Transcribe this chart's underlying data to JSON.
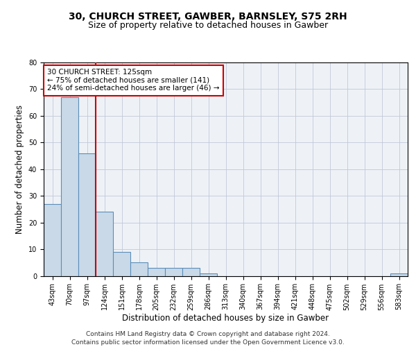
{
  "title_line1": "30, CHURCH STREET, GAWBER, BARNSLEY, S75 2RH",
  "title_line2": "Size of property relative to detached houses in Gawber",
  "xlabel": "Distribution of detached houses by size in Gawber",
  "ylabel": "Number of detached properties",
  "categories": [
    "43sqm",
    "70sqm",
    "97sqm",
    "124sqm",
    "151sqm",
    "178sqm",
    "205sqm",
    "232sqm",
    "259sqm",
    "286sqm",
    "313sqm",
    "340sqm",
    "367sqm",
    "394sqm",
    "421sqm",
    "448sqm",
    "475sqm",
    "502sqm",
    "529sqm",
    "556sqm",
    "583sqm"
  ],
  "values": [
    27,
    67,
    46,
    24,
    9,
    5,
    3,
    3,
    3,
    1,
    0,
    0,
    0,
    0,
    0,
    0,
    0,
    0,
    0,
    0,
    1
  ],
  "bar_color": "#c9d9e8",
  "bar_edge_color": "#5b8db8",
  "vline_x_index": 2.5,
  "vline_color": "#cc0000",
  "annotation_box_text": "30 CHURCH STREET: 125sqm\n← 75% of detached houses are smaller (141)\n24% of semi-detached houses are larger (46) →",
  "annotation_box_color": "#cc0000",
  "ylim": [
    0,
    80
  ],
  "yticks": [
    0,
    10,
    20,
    30,
    40,
    50,
    60,
    70,
    80
  ],
  "grid_color": "#c0c8d8",
  "background_color": "#eef2f7",
  "footer_text": "Contains HM Land Registry data © Crown copyright and database right 2024.\nContains public sector information licensed under the Open Government Licence v3.0.",
  "title_fontsize": 10,
  "subtitle_fontsize": 9,
  "annotation_fontsize": 7.5,
  "axis_label_fontsize": 8.5,
  "tick_fontsize": 7,
  "footer_fontsize": 6.5
}
